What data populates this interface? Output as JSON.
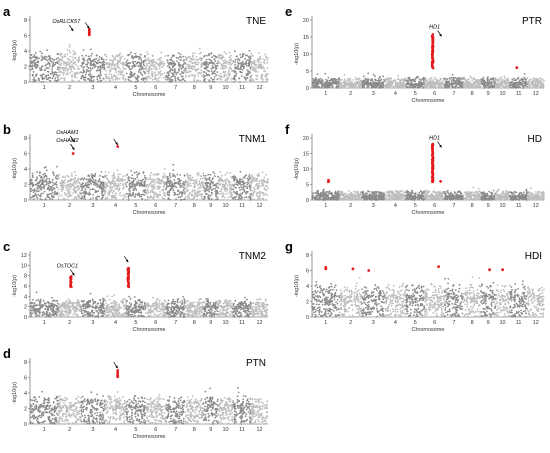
{
  "figure": {
    "panels": [
      {
        "id": "a",
        "label": "a",
        "trait": "TNE",
        "ylabel": "-log10(p)",
        "xlabel": "Chromosome",
        "ylim": [
          0,
          8
        ],
        "yticks": [
          0,
          2,
          4,
          6,
          8
        ],
        "chromosomes": [
          "1",
          "2",
          "3",
          "4",
          "5",
          "6",
          "7",
          "8",
          "9",
          "10",
          "11",
          "12"
        ],
        "baseline": 2.6,
        "noise": 1.1,
        "peaks": [
          {
            "chr": 2,
            "pos": 0.5,
            "height": 6.2,
            "width": 0.08
          },
          {
            "chr": 12,
            "pos": 0.5,
            "height": 4.3,
            "width": 0.12
          }
        ],
        "red_hits": [
          {
            "chr": 3,
            "pos": 0.35,
            "ys": [
              6.1,
              6.3,
              6.4,
              6.6,
              6.8
            ]
          }
        ],
        "annotations": [
          {
            "text": "OsRLCK57",
            "chr": 2,
            "pos": 0.35,
            "y": 7.6
          },
          {
            "text": "",
            "chr": 3,
            "pos": 0.35,
            "y": 6.9
          }
        ]
      },
      {
        "id": "b",
        "label": "b",
        "trait": "TNM1",
        "ylabel": "-log10(p)",
        "xlabel": "Chromosome",
        "ylim": [
          0,
          8
        ],
        "yticks": [
          0,
          2,
          4,
          6,
          8
        ],
        "chromosomes": [
          "1",
          "2",
          "3",
          "4",
          "5",
          "6",
          "7",
          "8",
          "9",
          "10",
          "11",
          "12"
        ],
        "baseline": 2.4,
        "noise": 1.1,
        "peaks": [
          {
            "chr": 4,
            "pos": 0.6,
            "height": 5.9,
            "width": 0.06
          },
          {
            "chr": 2,
            "pos": 0.6,
            "height": 5.3,
            "width": 0.08
          },
          {
            "chr": 7,
            "pos": 0.4,
            "height": 5.0,
            "width": 0.1
          }
        ],
        "red_hits": [
          {
            "chr": 4,
            "pos": 0.6,
            "ys": [
              6.9
            ]
          },
          {
            "chr": 2,
            "pos": 0.65,
            "ys": [
              6.0
            ]
          }
        ],
        "annotations": [
          {
            "text": "OsHAM1",
            "chr": 2,
            "pos": 0.4,
            "y": 8.5
          },
          {
            "text": "OsHAM2",
            "chr": 2,
            "pos": 0.4,
            "y": 7.5
          },
          {
            "text": "",
            "chr": 4,
            "pos": 0.6,
            "y": 7.1
          }
        ]
      },
      {
        "id": "c",
        "label": "c",
        "trait": "TNM2",
        "ylabel": "-log10(p)",
        "xlabel": "Chromosome",
        "ylim": [
          0,
          12
        ],
        "yticks": [
          0,
          2,
          4,
          6,
          8,
          10,
          12
        ],
        "chromosomes": [
          "1",
          "2",
          "3",
          "4",
          "5",
          "6",
          "7",
          "8",
          "9",
          "10",
          "11",
          "12"
        ],
        "baseline": 2.2,
        "noise": 1.2,
        "peaks": [],
        "red_hits": [
          {
            "chr": 2,
            "pos": 0.55,
            "column": [
              5.8,
              7.9
            ]
          },
          {
            "chr": 5,
            "pos": 0.1,
            "column": [
              5.8,
              9.5
            ]
          }
        ],
        "annotations": [
          {
            "text": "OsTOC1",
            "chr": 2,
            "pos": 0.4,
            "y": 9.6
          },
          {
            "text": "",
            "chr": 5,
            "pos": 0.1,
            "y": 10.6
          }
        ]
      },
      {
        "id": "d",
        "label": "d",
        "trait": "PTN",
        "ylabel": "-log10(p)",
        "xlabel": "Chromosome",
        "ylim": [
          0,
          8
        ],
        "yticks": [
          0,
          2,
          4,
          6,
          8
        ],
        "chromosomes": [
          "1",
          "2",
          "3",
          "4",
          "5",
          "6",
          "7",
          "8",
          "9",
          "10",
          "11",
          "12"
        ],
        "baseline": 2.4,
        "noise": 1.1,
        "peaks": [
          {
            "chr": 4,
            "pos": 0.6,
            "height": 5.8,
            "width": 0.08
          },
          {
            "chr": 9,
            "pos": 0.5,
            "height": 4.9,
            "width": 0.1
          },
          {
            "chr": 11,
            "pos": 0.3,
            "height": 5.4,
            "width": 0.1
          }
        ],
        "red_hits": [
          {
            "chr": 4,
            "pos": 0.6,
            "ys": [
              6.1,
              6.3,
              6.6,
              6.9
            ]
          }
        ],
        "annotations": [
          {
            "text": "",
            "chr": 4,
            "pos": 0.6,
            "y": 7.2
          }
        ]
      },
      {
        "id": "e",
        "label": "e",
        "trait": "PTR",
        "ylabel": "-log10(p)",
        "xlabel": "Chromosome",
        "ylim": [
          0,
          20
        ],
        "yticks": [
          0,
          5,
          10,
          15,
          20
        ],
        "chromosomes": [
          "1",
          "2",
          "3",
          "4",
          "5",
          "6",
          "7",
          "8",
          "9",
          "10",
          "11",
          "12"
        ],
        "baseline": 1.6,
        "noise": 1.5,
        "peaks": [],
        "red_hits": [
          {
            "chr": 6,
            "pos": 0.4,
            "column": [
              5.8,
              15.8
            ]
          },
          {
            "chr": 11,
            "pos": 0.4,
            "ys": [
              6.0
            ]
          }
        ],
        "annotations": [
          {
            "text": "HD1",
            "chr": 6,
            "pos": 0.5,
            "y": 17.5
          }
        ]
      },
      {
        "id": "f",
        "label": "f",
        "trait": "HD",
        "ylabel": "-log10(p)",
        "xlabel": "Chromosome",
        "ylim": [
          0,
          20
        ],
        "yticks": [
          0,
          5,
          10,
          15,
          20
        ],
        "chromosomes": [
          "1",
          "2",
          "3",
          "4",
          "5",
          "6",
          "7",
          "8",
          "9",
          "10",
          "11",
          "12"
        ],
        "baseline": 1.5,
        "noise": 1.5,
        "peaks": [],
        "red_hits": [
          {
            "chr": 6,
            "pos": 0.4,
            "column": [
              5.8,
              18.2
            ]
          },
          {
            "chr": 1,
            "pos": 0.6,
            "column": [
              5.8,
              6.6
            ]
          },
          {
            "chr": 6,
            "pos": 0.8,
            "ys": [
              6.0
            ]
          }
        ],
        "annotations": [
          {
            "text": "HD1",
            "chr": 6,
            "pos": 0.5,
            "y": 19.5
          }
        ]
      },
      {
        "id": "g",
        "label": "g",
        "trait": "HDI",
        "ylabel": "-log10(p)",
        "xlabel": "Chromosome",
        "ylim": [
          0,
          8
        ],
        "yticks": [
          0,
          2,
          4,
          6,
          8
        ],
        "chromosomes": [
          "1",
          "2",
          "3",
          "4",
          "5",
          "6",
          "7",
          "8",
          "9",
          "10",
          "11",
          "12"
        ],
        "baseline": 2.8,
        "noise": 1.3,
        "peaks": [],
        "red_hits": [
          {
            "chr": 1,
            "pos": 0.5,
            "ys": [
              6.2,
              6.4
            ]
          },
          {
            "chr": 2,
            "pos": 0.6,
            "ys": [
              6.2
            ]
          },
          {
            "chr": 3,
            "pos": 0.3,
            "ys": [
              6.0
            ]
          },
          {
            "chr": 6,
            "pos": 0.7,
            "ys": [
              6.5
            ]
          },
          {
            "chr": 9,
            "pos": 0.6,
            "ys": [
              6.1
            ]
          },
          {
            "chr": 10,
            "pos": 0.5,
            "ys": [
              6.1
            ]
          }
        ],
        "annotations": []
      }
    ]
  }
}
